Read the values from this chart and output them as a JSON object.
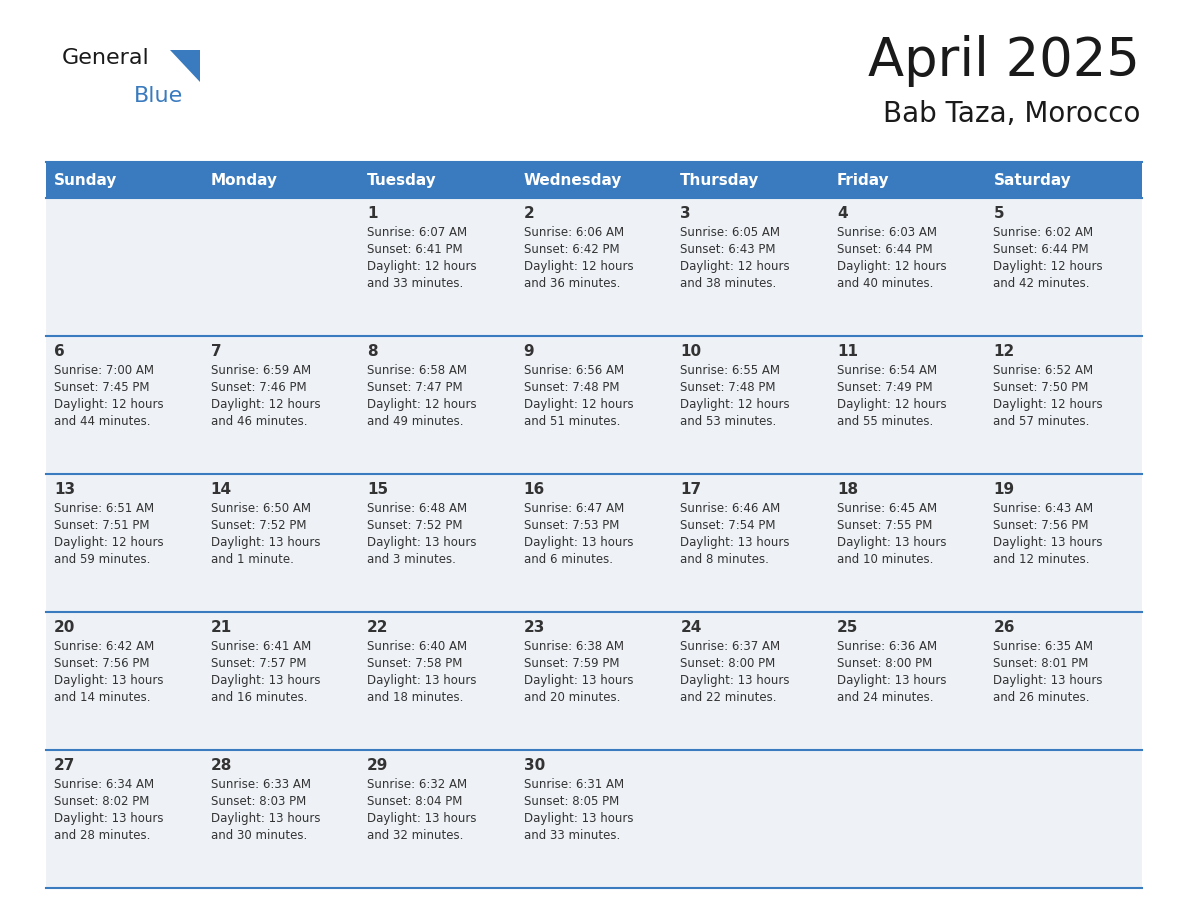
{
  "title": "April 2025",
  "subtitle": "Bab Taza, Morocco",
  "header_bg": "#3a7bbf",
  "header_text": "#ffffff",
  "cell_bg": "#eef2f7",
  "row_line_color": "#3a7bbf",
  "text_color": "#333333",
  "days_of_week": [
    "Sunday",
    "Monday",
    "Tuesday",
    "Wednesday",
    "Thursday",
    "Friday",
    "Saturday"
  ],
  "calendar_data": [
    [
      {
        "day": "",
        "sunrise": "",
        "sunset": "",
        "daylight_h": "",
        "daylight_m": ""
      },
      {
        "day": "",
        "sunrise": "",
        "sunset": "",
        "daylight_h": "",
        "daylight_m": ""
      },
      {
        "day": "1",
        "sunrise": "6:07 AM",
        "sunset": "6:41 PM",
        "daylight_h": "12",
        "daylight_m": "33 minutes."
      },
      {
        "day": "2",
        "sunrise": "6:06 AM",
        "sunset": "6:42 PM",
        "daylight_h": "12",
        "daylight_m": "36 minutes."
      },
      {
        "day": "3",
        "sunrise": "6:05 AM",
        "sunset": "6:43 PM",
        "daylight_h": "12",
        "daylight_m": "38 minutes."
      },
      {
        "day": "4",
        "sunrise": "6:03 AM",
        "sunset": "6:44 PM",
        "daylight_h": "12",
        "daylight_m": "40 minutes."
      },
      {
        "day": "5",
        "sunrise": "6:02 AM",
        "sunset": "6:44 PM",
        "daylight_h": "12",
        "daylight_m": "42 minutes."
      }
    ],
    [
      {
        "day": "6",
        "sunrise": "7:00 AM",
        "sunset": "7:45 PM",
        "daylight_h": "12",
        "daylight_m": "44 minutes."
      },
      {
        "day": "7",
        "sunrise": "6:59 AM",
        "sunset": "7:46 PM",
        "daylight_h": "12",
        "daylight_m": "46 minutes."
      },
      {
        "day": "8",
        "sunrise": "6:58 AM",
        "sunset": "7:47 PM",
        "daylight_h": "12",
        "daylight_m": "49 minutes."
      },
      {
        "day": "9",
        "sunrise": "6:56 AM",
        "sunset": "7:48 PM",
        "daylight_h": "12",
        "daylight_m": "51 minutes."
      },
      {
        "day": "10",
        "sunrise": "6:55 AM",
        "sunset": "7:48 PM",
        "daylight_h": "12",
        "daylight_m": "53 minutes."
      },
      {
        "day": "11",
        "sunrise": "6:54 AM",
        "sunset": "7:49 PM",
        "daylight_h": "12",
        "daylight_m": "55 minutes."
      },
      {
        "day": "12",
        "sunrise": "6:52 AM",
        "sunset": "7:50 PM",
        "daylight_h": "12",
        "daylight_m": "57 minutes."
      }
    ],
    [
      {
        "day": "13",
        "sunrise": "6:51 AM",
        "sunset": "7:51 PM",
        "daylight_h": "12",
        "daylight_m": "59 minutes."
      },
      {
        "day": "14",
        "sunrise": "6:50 AM",
        "sunset": "7:52 PM",
        "daylight_h": "13",
        "daylight_m": "1 minute."
      },
      {
        "day": "15",
        "sunrise": "6:48 AM",
        "sunset": "7:52 PM",
        "daylight_h": "13",
        "daylight_m": "3 minutes."
      },
      {
        "day": "16",
        "sunrise": "6:47 AM",
        "sunset": "7:53 PM",
        "daylight_h": "13",
        "daylight_m": "6 minutes."
      },
      {
        "day": "17",
        "sunrise": "6:46 AM",
        "sunset": "7:54 PM",
        "daylight_h": "13",
        "daylight_m": "8 minutes."
      },
      {
        "day": "18",
        "sunrise": "6:45 AM",
        "sunset": "7:55 PM",
        "daylight_h": "13",
        "daylight_m": "10 minutes."
      },
      {
        "day": "19",
        "sunrise": "6:43 AM",
        "sunset": "7:56 PM",
        "daylight_h": "13",
        "daylight_m": "12 minutes."
      }
    ],
    [
      {
        "day": "20",
        "sunrise": "6:42 AM",
        "sunset": "7:56 PM",
        "daylight_h": "13",
        "daylight_m": "14 minutes."
      },
      {
        "day": "21",
        "sunrise": "6:41 AM",
        "sunset": "7:57 PM",
        "daylight_h": "13",
        "daylight_m": "16 minutes."
      },
      {
        "day": "22",
        "sunrise": "6:40 AM",
        "sunset": "7:58 PM",
        "daylight_h": "13",
        "daylight_m": "18 minutes."
      },
      {
        "day": "23",
        "sunrise": "6:38 AM",
        "sunset": "7:59 PM",
        "daylight_h": "13",
        "daylight_m": "20 minutes."
      },
      {
        "day": "24",
        "sunrise": "6:37 AM",
        "sunset": "8:00 PM",
        "daylight_h": "13",
        "daylight_m": "22 minutes."
      },
      {
        "day": "25",
        "sunrise": "6:36 AM",
        "sunset": "8:00 PM",
        "daylight_h": "13",
        "daylight_m": "24 minutes."
      },
      {
        "day": "26",
        "sunrise": "6:35 AM",
        "sunset": "8:01 PM",
        "daylight_h": "13",
        "daylight_m": "26 minutes."
      }
    ],
    [
      {
        "day": "27",
        "sunrise": "6:34 AM",
        "sunset": "8:02 PM",
        "daylight_h": "13",
        "daylight_m": "28 minutes."
      },
      {
        "day": "28",
        "sunrise": "6:33 AM",
        "sunset": "8:03 PM",
        "daylight_h": "13",
        "daylight_m": "30 minutes."
      },
      {
        "day": "29",
        "sunrise": "6:32 AM",
        "sunset": "8:04 PM",
        "daylight_h": "13",
        "daylight_m": "32 minutes."
      },
      {
        "day": "30",
        "sunrise": "6:31 AM",
        "sunset": "8:05 PM",
        "daylight_h": "13",
        "daylight_m": "33 minutes."
      },
      {
        "day": "",
        "sunrise": "",
        "sunset": "",
        "daylight_h": "",
        "daylight_m": ""
      },
      {
        "day": "",
        "sunrise": "",
        "sunset": "",
        "daylight_h": "",
        "daylight_m": ""
      },
      {
        "day": "",
        "sunrise": "",
        "sunset": "",
        "daylight_h": "",
        "daylight_m": ""
      }
    ]
  ]
}
